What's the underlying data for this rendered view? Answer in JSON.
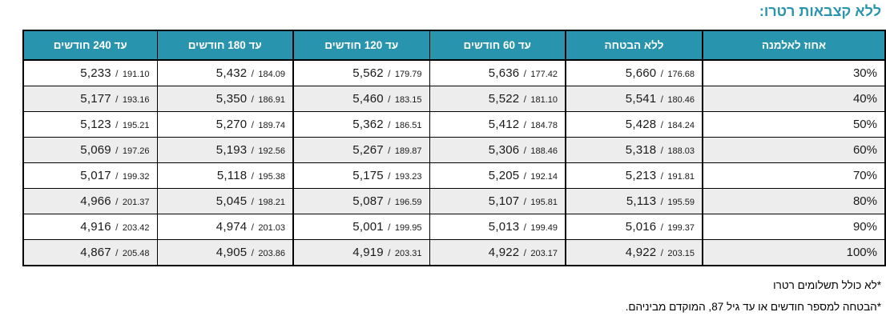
{
  "page": {
    "title": "ללא קצבאות רטרו:",
    "footnotes": [
      "*לא כולל תשלומים רטרו",
      "*הבטחה למספר חודשים או עד גיל 87, המוקדם מביניהם."
    ]
  },
  "colors": {
    "accent_teal": "#2994ad",
    "row_alternate": "#ededed",
    "border": "#000000"
  },
  "table": {
    "headers": [
      "אחוז לאלמנה",
      "ללא הבטחה",
      "עד 60 חודשים",
      "עד 120 חודשים",
      "עד 180 חודשים",
      "עד 240 חודשים"
    ],
    "separator": "/",
    "rows": [
      {
        "percent": "30%",
        "values": [
          {
            "main": "5,660",
            "sub": "176.68"
          },
          {
            "main": "5,636",
            "sub": "177.42"
          },
          {
            "main": "5,562",
            "sub": "179.79"
          },
          {
            "main": "5,432",
            "sub": "184.09"
          },
          {
            "main": "5,233",
            "sub": "191.10"
          }
        ]
      },
      {
        "percent": "40%",
        "values": [
          {
            "main": "5,541",
            "sub": "180.46"
          },
          {
            "main": "5,522",
            "sub": "181.10"
          },
          {
            "main": "5,460",
            "sub": "183.15"
          },
          {
            "main": "5,350",
            "sub": "186.91"
          },
          {
            "main": "5,177",
            "sub": "193.16"
          }
        ]
      },
      {
        "percent": "50%",
        "values": [
          {
            "main": "5,428",
            "sub": "184.24"
          },
          {
            "main": "5,412",
            "sub": "184.78"
          },
          {
            "main": "5,362",
            "sub": "186.51"
          },
          {
            "main": "5,270",
            "sub": "189.74"
          },
          {
            "main": "5,123",
            "sub": "195.21"
          }
        ]
      },
      {
        "percent": "60%",
        "values": [
          {
            "main": "5,318",
            "sub": "188.03"
          },
          {
            "main": "5,306",
            "sub": "188.46"
          },
          {
            "main": "5,267",
            "sub": "189.87"
          },
          {
            "main": "5,193",
            "sub": "192.56"
          },
          {
            "main": "5,069",
            "sub": "197.26"
          }
        ]
      },
      {
        "percent": "70%",
        "values": [
          {
            "main": "5,213",
            "sub": "191.81"
          },
          {
            "main": "5,205",
            "sub": "192.14"
          },
          {
            "main": "5,175",
            "sub": "193.23"
          },
          {
            "main": "5,118",
            "sub": "195.38"
          },
          {
            "main": "5,017",
            "sub": "199.32"
          }
        ]
      },
      {
        "percent": "80%",
        "values": [
          {
            "main": "5,113",
            "sub": "195.59"
          },
          {
            "main": "5,107",
            "sub": "195.81"
          },
          {
            "main": "5,087",
            "sub": "196.59"
          },
          {
            "main": "5,045",
            "sub": "198.21"
          },
          {
            "main": "4,966",
            "sub": "201.37"
          }
        ]
      },
      {
        "percent": "90%",
        "values": [
          {
            "main": "5,016",
            "sub": "199.37"
          },
          {
            "main": "5,013",
            "sub": "199.49"
          },
          {
            "main": "5,001",
            "sub": "199.95"
          },
          {
            "main": "4,974",
            "sub": "201.03"
          },
          {
            "main": "4,916",
            "sub": "203.42"
          }
        ]
      },
      {
        "percent": "100%",
        "values": [
          {
            "main": "4,922",
            "sub": "203.15"
          },
          {
            "main": "4,922",
            "sub": "203.17"
          },
          {
            "main": "4,919",
            "sub": "203.31"
          },
          {
            "main": "4,905",
            "sub": "203.86"
          },
          {
            "main": "4,867",
            "sub": "205.48"
          }
        ]
      }
    ]
  }
}
